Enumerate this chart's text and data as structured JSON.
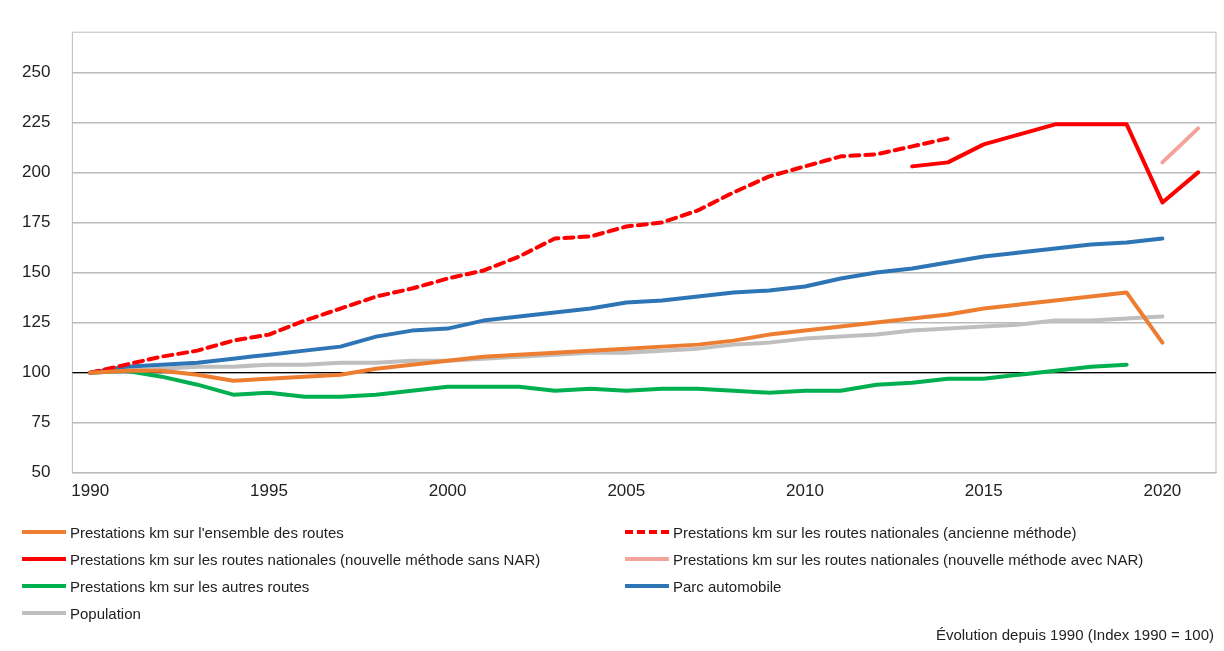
{
  "chart_data": {
    "type": "line",
    "categories": [
      "1990",
      null,
      null,
      null,
      null,
      "1995",
      null,
      null,
      null,
      null,
      "2000",
      null,
      null,
      null,
      null,
      "2005",
      null,
      null,
      null,
      null,
      "2010",
      null,
      null,
      null,
      null,
      "2015",
      null,
      null,
      null,
      null,
      "2020",
      null
    ],
    "ylim": [
      50,
      270
    ],
    "yticks": [
      50,
      75,
      100,
      125,
      150,
      175,
      200,
      225,
      250
    ],
    "grid": "y",
    "legend": "bottom",
    "marker": "none",
    "ref_lines": [
      {
        "axis": "y",
        "value": 100,
        "color": "#000000"
      }
    ],
    "annotations": [
      "Évolution depuis 1990 (Index 1990 = 100)"
    ],
    "series": [
      {
        "name": "Prestations km sur l'ensemble des routes",
        "color": "#ed7d31",
        "values": [
          100,
          101,
          101,
          99,
          96,
          97,
          98,
          99,
          102,
          104,
          106,
          108,
          109,
          110,
          111,
          112,
          113,
          114,
          116,
          119,
          121,
          123,
          125,
          127,
          129,
          132,
          134,
          136,
          138,
          140,
          115,
          null
        ]
      },
      {
        "name": "Prestations km sur les routes nationales (ancienne méthode)",
        "color": "#ff0000",
        "line_style": "dashed",
        "values": [
          100,
          104,
          108,
          111,
          116,
          119,
          126,
          132,
          138,
          142,
          147,
          151,
          158,
          167,
          168,
          173,
          175,
          181,
          190,
          198,
          203,
          208,
          209,
          213,
          217,
          null,
          null,
          null,
          null,
          null,
          null,
          null
        ]
      },
      {
        "name": "Prestations km sur les routes nationales (nouvelle méthode sans NAR)",
        "color": "#ff0000",
        "values": [
          null,
          null,
          null,
          null,
          null,
          null,
          null,
          null,
          null,
          null,
          null,
          null,
          null,
          null,
          null,
          null,
          null,
          null,
          null,
          null,
          null,
          null,
          null,
          203,
          205,
          214,
          219,
          224,
          224,
          224,
          185,
          200
        ]
      },
      {
        "name": "Prestations km sur les routes nationales (nouvelle méthode avec NAR)",
        "color": "#f4a39b",
        "values": [
          null,
          null,
          null,
          null,
          null,
          null,
          null,
          null,
          null,
          null,
          null,
          null,
          null,
          null,
          null,
          null,
          null,
          null,
          null,
          null,
          null,
          null,
          null,
          null,
          null,
          null,
          null,
          null,
          null,
          null,
          205,
          222
        ]
      },
      {
        "name": "Prestations km sur les autres routes",
        "color": "#00b050",
        "values": [
          100,
          101,
          98,
          94,
          89,
          90,
          88,
          88,
          89,
          91,
          93,
          93,
          93,
          91,
          92,
          91,
          92,
          92,
          91,
          90,
          91,
          91,
          94,
          95,
          97,
          97,
          99,
          101,
          103,
          104,
          null,
          null
        ]
      },
      {
        "name": "Parc automobile",
        "color": "#2e75b6",
        "values": [
          100,
          103,
          104,
          105,
          107,
          109,
          111,
          113,
          118,
          121,
          122,
          126,
          128,
          130,
          132,
          135,
          136,
          138,
          140,
          141,
          143,
          147,
          150,
          152,
          155,
          158,
          160,
          162,
          164,
          165,
          167,
          null
        ]
      },
      {
        "name": "Population",
        "color": "#bfbfbf",
        "values": [
          100,
          101,
          102,
          103,
          103,
          104,
          104,
          105,
          105,
          106,
          106,
          107,
          108,
          109,
          110,
          110,
          111,
          112,
          114,
          115,
          117,
          118,
          119,
          121,
          122,
          123,
          124,
          126,
          126,
          127,
          128,
          null
        ]
      }
    ]
  }
}
